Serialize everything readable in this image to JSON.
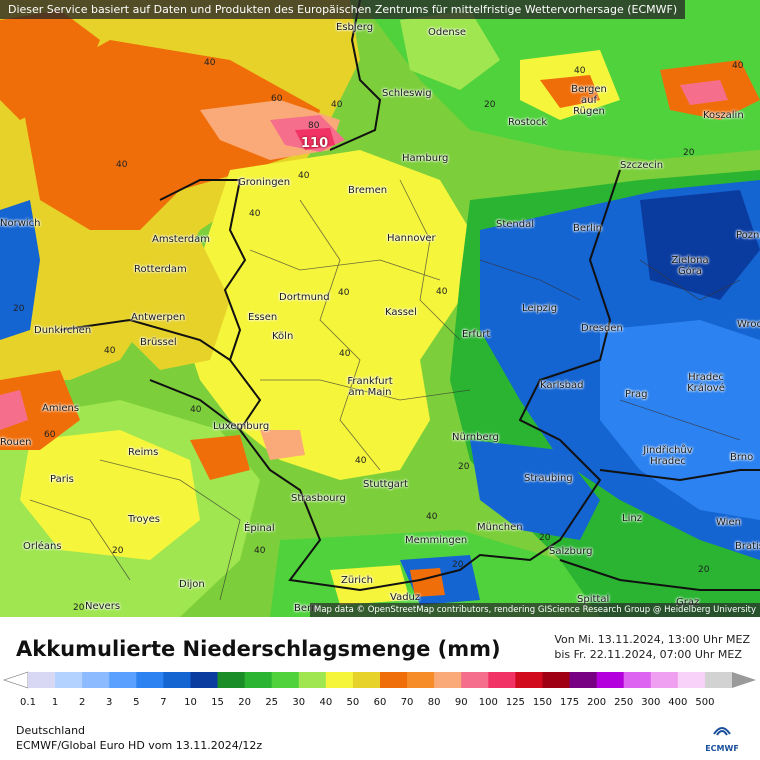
{
  "banner": "Dieser Service basiert auf Daten und Produkten des Europäischen Zentrums für mittelfristige Wettervorhersage (ECMWF)",
  "attribution": "Map data © OpenStreetMap contributors, rendering GIScience Research Group @ Heidelberg University",
  "title": "Akkumulierte Niederschlagsmenge (mm)",
  "period_from": "Von Mi. 13.11.2024, 13:00 Uhr MEZ",
  "period_to": "bis Fr. 22.11.2024, 07:00 Uhr MEZ",
  "region": "Deutschland",
  "model": "ECMWF/Global Euro HD vom  13.11.2024/12z",
  "logo_text": "ECMWF",
  "scale": {
    "ticks": [
      "0.1",
      "1",
      "2",
      "3",
      "5",
      "7",
      "10",
      "15",
      "20",
      "25",
      "30",
      "40",
      "50",
      "60",
      "70",
      "80",
      "90",
      "100",
      "125",
      "150",
      "175",
      "200",
      "250",
      "300",
      "400",
      "500"
    ],
    "colors": [
      "#d8d8f4",
      "#b4d2ff",
      "#8cbcff",
      "#5aa0ff",
      "#2c82f0",
      "#1464d2",
      "#0a3ca0",
      "#1a8c28",
      "#2ab432",
      "#50d23c",
      "#a0e650",
      "#f5f53c",
      "#e6d228",
      "#f06e0a",
      "#f58c28",
      "#faaa78",
      "#f56e8c",
      "#f03264",
      "#d20a1e",
      "#a00014",
      "#780082",
      "#b400dc",
      "#dc64f0",
      "#f0a0f0",
      "#f8d2f8",
      "#d2d2d2"
    ]
  },
  "cities": [
    {
      "name": "Esbjerg"
    },
    {
      "name": "Odense"
    },
    {
      "name": "Schleswig"
    },
    {
      "name": "Bergen auf Rügen"
    },
    {
      "name": "Koszalin"
    },
    {
      "name": "Rostock"
    },
    {
      "name": "Hamburg"
    },
    {
      "name": "Szczecin"
    },
    {
      "name": "Groningen"
    },
    {
      "name": "Bremen"
    },
    {
      "name": "Stendal"
    },
    {
      "name": "Berlin"
    },
    {
      "name": "Norwich"
    },
    {
      "name": "Amsterdam"
    },
    {
      "name": "Hannover"
    },
    {
      "name": "Poznań"
    },
    {
      "name": "Rotterdam"
    },
    {
      "name": "Zielona Góra"
    },
    {
      "name": "Dortmund"
    },
    {
      "name": "Antwerpen"
    },
    {
      "name": "Essen"
    },
    {
      "name": "Kassel"
    },
    {
      "name": "Leipzig"
    },
    {
      "name": "Dunkirchen"
    },
    {
      "name": "Erfurt"
    },
    {
      "name": "Dresden"
    },
    {
      "name": "Wrocław"
    },
    {
      "name": "Köln"
    },
    {
      "name": "Brüssel"
    },
    {
      "name": "Frankfurt am Main"
    },
    {
      "name": "Karlsbad"
    },
    {
      "name": "Hradec Králové"
    },
    {
      "name": "Prag"
    },
    {
      "name": "Amiens"
    },
    {
      "name": "Rouen"
    },
    {
      "name": "Luxemburg"
    },
    {
      "name": "Nürnberg"
    },
    {
      "name": "Jindřichův Hradec"
    },
    {
      "name": "Brno"
    },
    {
      "name": "Reims"
    },
    {
      "name": "Paris"
    },
    {
      "name": "Straubing"
    },
    {
      "name": "Stuttgart"
    },
    {
      "name": "Strasbourg"
    },
    {
      "name": "Troyes"
    },
    {
      "name": "Linz"
    },
    {
      "name": "Wien"
    },
    {
      "name": "Épinal"
    },
    {
      "name": "München"
    },
    {
      "name": "Memmingen"
    },
    {
      "name": "Orléans"
    },
    {
      "name": "Salzburg"
    },
    {
      "name": "Zürich"
    },
    {
      "name": "Dijon"
    },
    {
      "name": "Spittal"
    },
    {
      "name": "Vaduz"
    },
    {
      "name": "Nevers"
    },
    {
      "name": "Bern"
    },
    {
      "name": "Graz"
    },
    {
      "name": "Bratislava"
    }
  ],
  "values": [
    {
      "text": "40"
    },
    {
      "text": "60"
    },
    {
      "text": "80"
    },
    {
      "text": "110"
    },
    {
      "text": "40"
    },
    {
      "text": "40"
    },
    {
      "text": "40"
    },
    {
      "text": "20"
    },
    {
      "text": "40"
    },
    {
      "text": "40"
    },
    {
      "text": "40"
    },
    {
      "text": "40"
    },
    {
      "text": "40"
    },
    {
      "text": "60"
    },
    {
      "text": "40"
    },
    {
      "text": "40"
    },
    {
      "text": "20"
    },
    {
      "text": "40"
    },
    {
      "text": "20"
    },
    {
      "text": "20"
    },
    {
      "text": "20"
    },
    {
      "text": "40"
    },
    {
      "text": "40"
    },
    {
      "text": "20"
    },
    {
      "text": "20"
    },
    {
      "text": "40"
    },
    {
      "text": "20"
    },
    {
      "text": "20"
    }
  ]
}
